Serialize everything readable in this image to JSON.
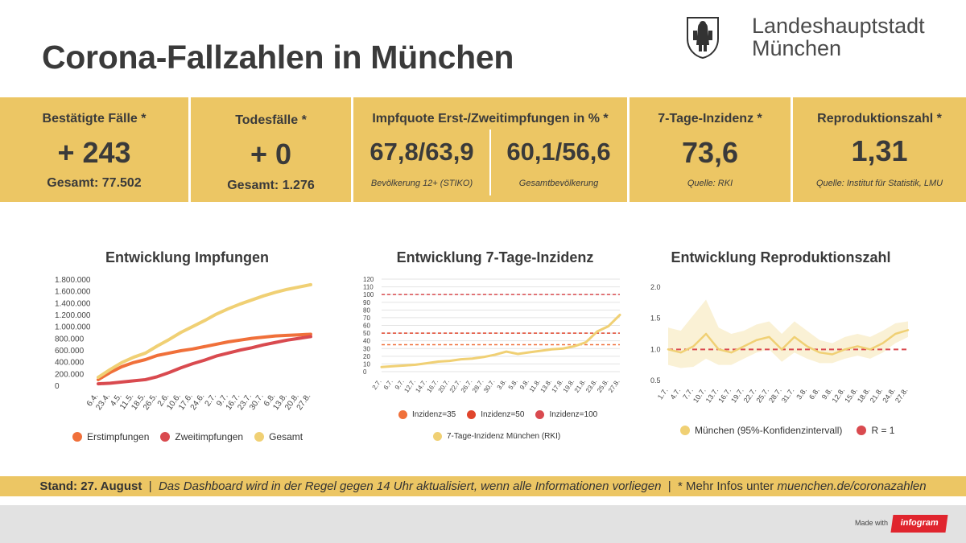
{
  "page": {
    "title": "Corona-Fallzahlen in München",
    "brand_line1": "Landeshauptstadt",
    "brand_line2": "München",
    "accent_color": "#ecc664"
  },
  "kpis": {
    "cases": {
      "label": "Bestätigte Fälle *",
      "value": "+ 243",
      "sub": "Gesamt: 77.502"
    },
    "deaths": {
      "label": "Todesfälle *",
      "value": "+ 0",
      "sub": "Gesamt: 1.276"
    },
    "vaccination": {
      "label": "Impfquote Erst-/Zweitimpfungen in % *",
      "value1": "67,8/63,9",
      "note1": "Bevölkerung 12+ (STIKO)",
      "value2": "60,1/56,6",
      "note2": "Gesamtbevölkerung"
    },
    "incidence": {
      "label": "7-Tage-Inzidenz *",
      "value": "73,6",
      "note": "Quelle: RKI"
    },
    "r_value": {
      "label": "Reproduktionszahl *",
      "value": "1,31",
      "note": "Quelle: Institut für Statistik, LMU"
    }
  },
  "footer": {
    "stand": "Stand: 27. August",
    "sep": "|",
    "message": "Das Dashboard wird in der Regel gegen 14 Uhr aktualisiert, wenn alle Informationen vorliegen",
    "more_prefix": "* Mehr Infos unter ",
    "more_link": "muenchen.de/coronazahlen"
  },
  "made_with": "Made with",
  "infogram": "infogram",
  "chart_data": [
    {
      "type": "line",
      "title": "Entwicklung Impfungen",
      "x": [
        "6.4.",
        "23.4.",
        "4.5.",
        "11.5.",
        "18.5.",
        "26.5.",
        "2.6.",
        "10.6.",
        "17.6.",
        "24.6.",
        "2.7.",
        "9.7.",
        "16.7.",
        "23.7.",
        "30.7.",
        "6.8.",
        "13.8.",
        "20.8.",
        "27.8."
      ],
      "ylim": [
        0,
        1800000
      ],
      "yticks": [
        "0",
        "200.000",
        "400.000",
        "600.000",
        "800.000",
        "1.000.000",
        "1.200.000",
        "1.400.000",
        "1.600.000",
        "1.800.000"
      ],
      "series": [
        {
          "name": "Erstimpfungen",
          "color": "#f0703a",
          "values": [
            110000,
            230000,
            330000,
            400000,
            450000,
            520000,
            560000,
            600000,
            630000,
            670000,
            710000,
            750000,
            780000,
            810000,
            830000,
            850000,
            860000,
            870000,
            880000
          ]
        },
        {
          "name": "Zweitimpfungen",
          "color": "#d94a4f",
          "values": [
            40000,
            50000,
            70000,
            90000,
            110000,
            160000,
            230000,
            310000,
            380000,
            440000,
            510000,
            560000,
            610000,
            650000,
            700000,
            740000,
            780000,
            810000,
            840000
          ]
        },
        {
          "name": "Gesamt",
          "color": "#f0d074",
          "values": [
            150000,
            280000,
            400000,
            490000,
            560000,
            680000,
            790000,
            910000,
            1010000,
            1110000,
            1220000,
            1310000,
            1390000,
            1460000,
            1530000,
            1590000,
            1640000,
            1680000,
            1720000
          ]
        }
      ]
    },
    {
      "type": "line",
      "title": "Entwicklung 7-Tage-Inzidenz",
      "x": [
        "2.7.",
        "6.7.",
        "9.7.",
        "12.7.",
        "14.7.",
        "16.7.",
        "20.7.",
        "22.7.",
        "26.7.",
        "28.7.",
        "30.7.",
        "3.8.",
        "5.8.",
        "9.8.",
        "11.8.",
        "13.8.",
        "17.8.",
        "19.8.",
        "21.8.",
        "23.8.",
        "25.8.",
        "27.8."
      ],
      "ylim": [
        0,
        120
      ],
      "yticks": [
        "0",
        "10",
        "20",
        "30",
        "40",
        "50",
        "60",
        "70",
        "80",
        "90",
        "100",
        "110",
        "120"
      ],
      "thresholds": [
        {
          "name": "Inzidenz=35",
          "value": 35,
          "color": "#f0703a"
        },
        {
          "name": "Inzidenz=50",
          "value": 50,
          "color": "#e0452c"
        },
        {
          "name": "Inzidenz=100",
          "value": 100,
          "color": "#d94a4f"
        }
      ],
      "series": [
        {
          "name": "7-Tage-Inzidenz München (RKI)",
          "color": "#f0d074",
          "values": [
            6,
            7,
            8,
            9,
            11,
            13,
            14,
            16,
            17,
            19,
            22,
            26,
            23,
            25,
            27,
            29,
            30,
            33,
            38,
            52,
            59,
            73.6
          ]
        }
      ]
    },
    {
      "type": "area",
      "title": "Entwicklung Reproduktionszahl",
      "x": [
        "1.7.",
        "4.7.",
        "7.7.",
        "10.7.",
        "13.7.",
        "16.7.",
        "19.7.",
        "22.7.",
        "25.7.",
        "28.7.",
        "31.7.",
        "3.8.",
        "6.8.",
        "9.8.",
        "12.8.",
        "15.8.",
        "18.8.",
        "21.8.",
        "24.8.",
        "27.8."
      ],
      "ylim": [
        0.5,
        2.0
      ],
      "yticks": [
        "0.5",
        "1.0",
        "1.5",
        "2.0"
      ],
      "reference": {
        "name": "R = 1",
        "value": 1.0,
        "color": "#d94a4f"
      },
      "series": [
        {
          "name": "München (95%-Konfidenzintervall)",
          "color": "#f0d074",
          "values": [
            1.0,
            0.95,
            1.05,
            1.25,
            1.0,
            0.95,
            1.05,
            1.15,
            1.2,
            1.0,
            1.2,
            1.05,
            0.95,
            0.92,
            1.0,
            1.05,
            1.0,
            1.1,
            1.25,
            1.31
          ],
          "lower": [
            0.75,
            0.7,
            0.72,
            0.85,
            0.75,
            0.75,
            0.85,
            0.95,
            1.0,
            0.8,
            0.95,
            0.85,
            0.78,
            0.78,
            0.85,
            0.9,
            0.85,
            0.95,
            1.1,
            1.2
          ],
          "upper": [
            1.35,
            1.3,
            1.55,
            1.8,
            1.35,
            1.25,
            1.3,
            1.4,
            1.45,
            1.25,
            1.45,
            1.3,
            1.15,
            1.1,
            1.2,
            1.25,
            1.2,
            1.3,
            1.42,
            1.45
          ]
        }
      ]
    }
  ]
}
